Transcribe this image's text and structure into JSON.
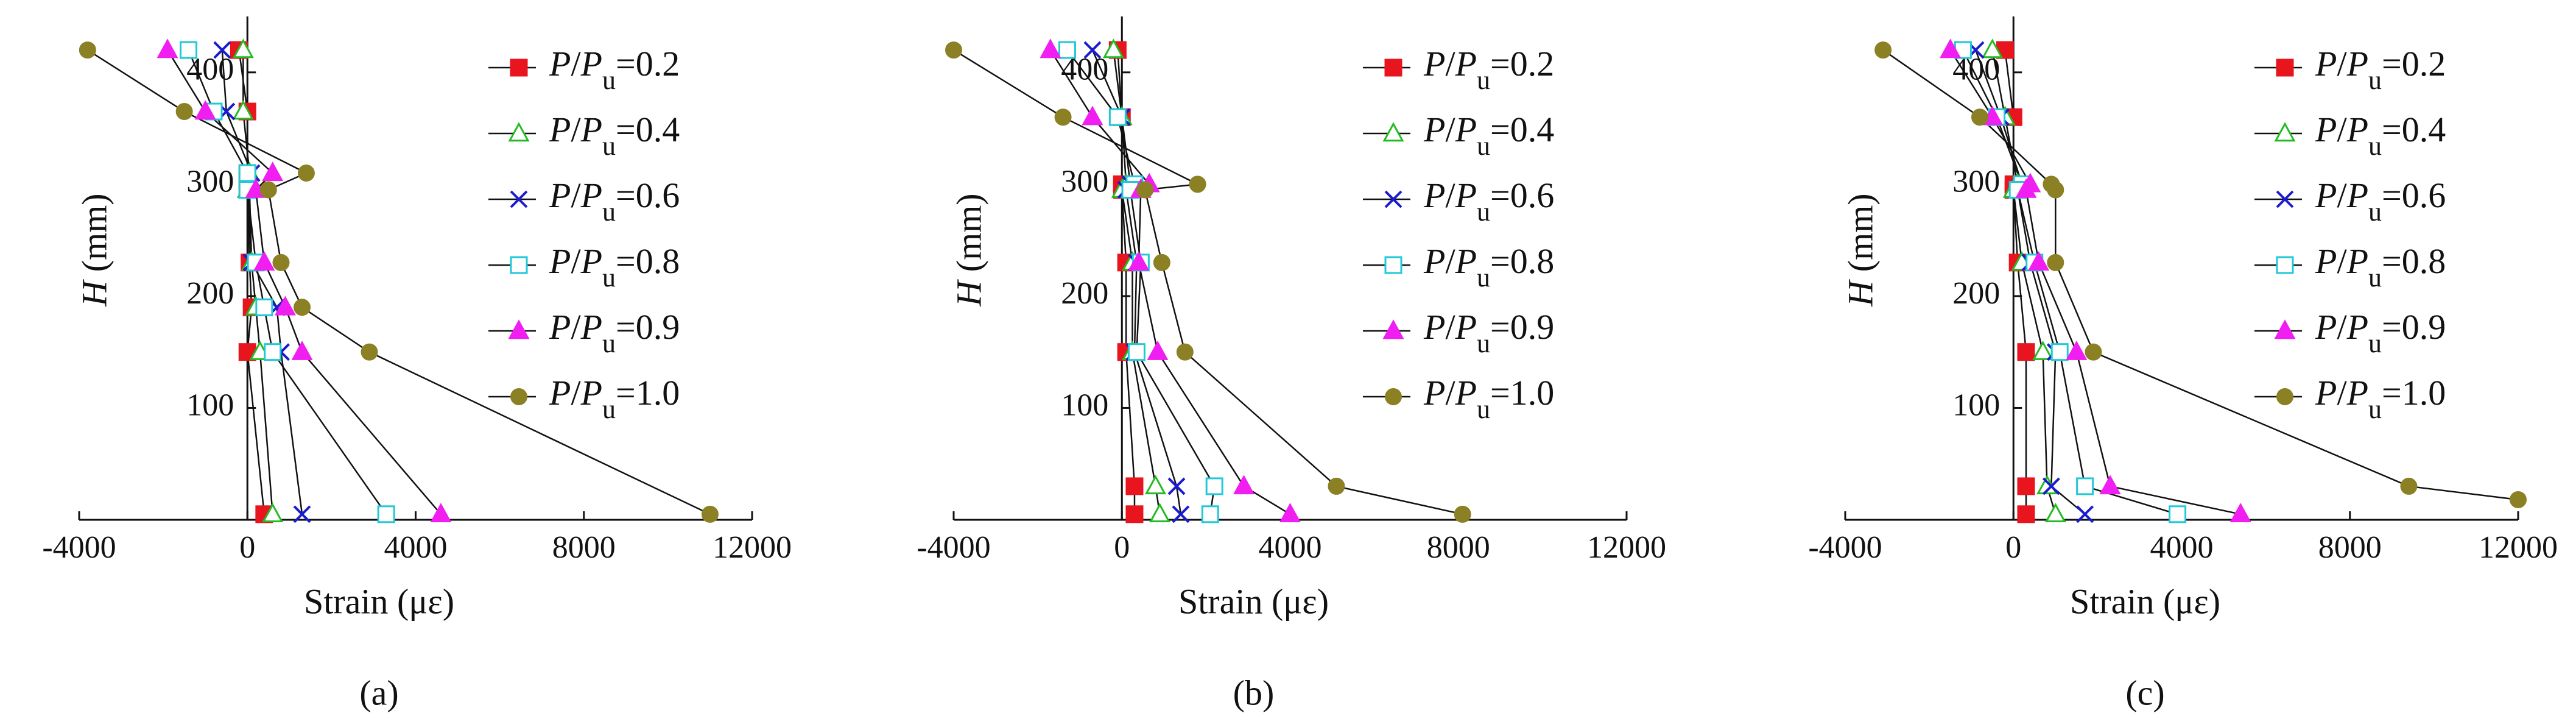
{
  "chart_data": [
    {
      "type": "line",
      "panel_label": "(a)",
      "xlabel": "Strain (με)",
      "ylabel": "H (mm)",
      "xlim": [
        -4000,
        12000
      ],
      "xticks": [
        -4000,
        0,
        4000,
        8000,
        12000
      ],
      "ylim": [
        0,
        450
      ],
      "yticks": [
        100,
        200,
        300,
        400
      ],
      "series": [
        {
          "name": "P/Pu=0.2",
          "color": "#e8141e",
          "marker": "square-filled",
          "x": [
            -200,
            0,
            0,
            0,
            50,
            100,
            0,
            400
          ],
          "values": [
            420,
            365,
            310,
            295,
            230,
            190,
            150,
            5
          ]
        },
        {
          "name": "P/Pu=0.4",
          "color": "#22bb22",
          "marker": "triangle-open",
          "x": [
            -100,
            -100,
            50,
            0,
            100,
            200,
            300,
            600
          ],
          "values": [
            420,
            365,
            310,
            295,
            230,
            190,
            150,
            5
          ]
        },
        {
          "name": "P/Pu=0.6",
          "color": "#1a1ad0",
          "marker": "cross",
          "x": [
            -600,
            -500,
            100,
            50,
            100,
            700,
            800,
            1300
          ],
          "values": [
            420,
            365,
            310,
            295,
            230,
            190,
            150,
            5
          ]
        },
        {
          "name": "P/Pu=0.8",
          "color": "#20c8d8",
          "marker": "square-open",
          "x": [
            -1400,
            -800,
            0,
            0,
            200,
            400,
            600,
            3300
          ],
          "values": [
            420,
            365,
            310,
            295,
            230,
            190,
            150,
            5
          ]
        },
        {
          "name": "P/Pu=0.9",
          "color": "#f01ef0",
          "marker": "triangle-filled",
          "x": [
            -1900,
            -1000,
            600,
            200,
            400,
            900,
            1300,
            4600
          ],
          "values": [
            420,
            365,
            310,
            295,
            230,
            190,
            150,
            5
          ]
        },
        {
          "name": "P/Pu=1.0",
          "color": "#8c8024",
          "marker": "circle-filled",
          "x": [
            -3800,
            -1500,
            1400,
            500,
            800,
            1300,
            2900,
            11000
          ],
          "values": [
            420,
            365,
            310,
            295,
            230,
            190,
            150,
            5
          ]
        }
      ]
    },
    {
      "type": "line",
      "panel_label": "(b)",
      "xlabel": "Strain (με)",
      "ylabel": "H (mm)",
      "xlim": [
        -4000,
        12000
      ],
      "xticks": [
        -4000,
        0,
        4000,
        8000,
        12000
      ],
      "ylim": [
        0,
        450
      ],
      "yticks": [
        100,
        200,
        300,
        400
      ],
      "series": [
        {
          "name": "P/Pu=0.2",
          "color": "#e8141e",
          "marker": "square-filled",
          "x": [
            -100,
            0,
            0,
            0,
            100,
            100,
            300,
            300
          ],
          "values": [
            420,
            360,
            300,
            295,
            230,
            150,
            30,
            5
          ]
        },
        {
          "name": "P/Pu=0.4",
          "color": "#22bb22",
          "marker": "triangle-open",
          "x": [
            -200,
            0,
            100,
            0,
            250,
            250,
            800,
            900
          ],
          "values": [
            420,
            360,
            300,
            295,
            230,
            150,
            30,
            5
          ]
        },
        {
          "name": "P/Pu=0.6",
          "color": "#1a1ad0",
          "marker": "cross",
          "x": [
            -700,
            0,
            200,
            100,
            350,
            300,
            1300,
            1400
          ],
          "values": [
            420,
            360,
            300,
            295,
            230,
            150,
            30,
            5
          ]
        },
        {
          "name": "P/Pu=0.8",
          "color": "#20c8d8",
          "marker": "square-open",
          "x": [
            -1300,
            -100,
            300,
            200,
            450,
            350,
            2200,
            2100
          ],
          "values": [
            420,
            360,
            300,
            295,
            230,
            150,
            30,
            5
          ]
        },
        {
          "name": "P/Pu=0.9",
          "color": "#f01ef0",
          "marker": "triangle-filled",
          "x": [
            -1700,
            -700,
            650,
            450,
            400,
            850,
            2900,
            4000
          ],
          "values": [
            420,
            360,
            300,
            295,
            230,
            150,
            30,
            5
          ]
        },
        {
          "name": "P/Pu=1.0",
          "color": "#8c8024",
          "marker": "circle-filled",
          "x": [
            -4000,
            -1400,
            1800,
            550,
            950,
            1500,
            5100,
            8100
          ],
          "values": [
            420,
            360,
            300,
            295,
            230,
            150,
            30,
            5
          ]
        }
      ]
    },
    {
      "type": "line",
      "panel_label": "(c)",
      "xlabel": "Strain (με)",
      "ylabel": "H (mm)",
      "xlim": [
        -4000,
        12000
      ],
      "xticks": [
        -4000,
        0,
        4000,
        8000,
        12000
      ],
      "ylim": [
        0,
        450
      ],
      "yticks": [
        100,
        200,
        300,
        400
      ],
      "series": [
        {
          "name": "P/Pu=0.2",
          "color": "#e8141e",
          "marker": "square-filled",
          "x": [
            -200,
            0,
            0,
            0,
            100,
            300,
            300,
            300
          ],
          "values": [
            420,
            360,
            300,
            295,
            230,
            150,
            30,
            5
          ]
        },
        {
          "name": "P/Pu=0.4",
          "color": "#22bb22",
          "marker": "triangle-open",
          "x": [
            -500,
            -200,
            100,
            0,
            200,
            700,
            800,
            1000
          ],
          "values": [
            420,
            360,
            300,
            295,
            230,
            150,
            30,
            5
          ]
        },
        {
          "name": "P/Pu=0.6",
          "color": "#1a1ad0",
          "marker": "cross",
          "x": [
            -900,
            -300,
            200,
            100,
            400,
            1000,
            900,
            1700
          ],
          "values": [
            420,
            360,
            300,
            295,
            230,
            150,
            30,
            5
          ]
        },
        {
          "name": "P/Pu=0.8",
          "color": "#20c8d8",
          "marker": "square-open",
          "x": [
            -1200,
            -400,
            200,
            100,
            500,
            1100,
            1700,
            3900
          ],
          "values": [
            420,
            360,
            300,
            295,
            230,
            150,
            30,
            5
          ]
        },
        {
          "name": "P/Pu=0.9",
          "color": "#f01ef0",
          "marker": "triangle-filled",
          "x": [
            -1500,
            -500,
            400,
            300,
            600,
            1500,
            2300,
            5400
          ],
          "values": [
            420,
            360,
            300,
            295,
            230,
            150,
            30,
            5
          ]
        },
        {
          "name": "P/Pu=1.0",
          "color": "#8c8024",
          "marker": "circle-filled",
          "x": [
            -3100,
            -800,
            900,
            1000,
            1000,
            1900,
            9400,
            12000
          ],
          "values": [
            420,
            360,
            300,
            295,
            230,
            150,
            30,
            18
          ]
        }
      ]
    }
  ]
}
